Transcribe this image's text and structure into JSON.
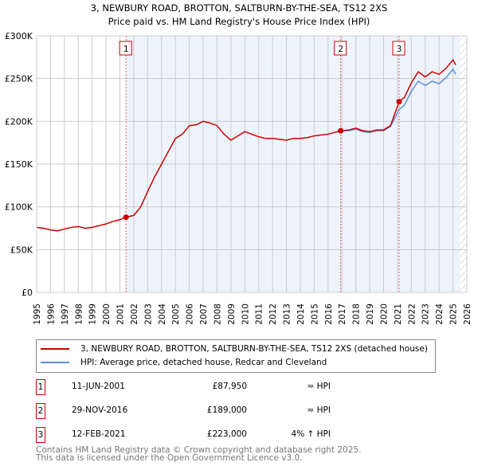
{
  "chart_data": {
    "type": "line",
    "title": "3, NEWBURY ROAD, BROTTON, SALTBURN-BY-THE-SEA, TS12 2XS",
    "subtitle": "Price paid vs. HM Land Registry's House Price Index (HPI)",
    "xlim": [
      1995,
      2026
    ],
    "ylim": [
      0,
      300000
    ],
    "x_ticks": [
      "1995",
      "1996",
      "1997",
      "1998",
      "1999",
      "2000",
      "2001",
      "2002",
      "2003",
      "2004",
      "2005",
      "2006",
      "2007",
      "2008",
      "2009",
      "2010",
      "2011",
      "2012",
      "2013",
      "2014",
      "2015",
      "2016",
      "2017",
      "2018",
      "2019",
      "2020",
      "2021",
      "2022",
      "2023",
      "2024",
      "2025",
      "2026"
    ],
    "y_ticks": [
      {
        "v": 0,
        "label": "£0"
      },
      {
        "v": 50000,
        "label": "£50K"
      },
      {
        "v": 100000,
        "label": "£100K"
      },
      {
        "v": 150000,
        "label": "£150K"
      },
      {
        "v": 200000,
        "label": "£200K"
      },
      {
        "v": 250000,
        "label": "£250K"
      },
      {
        "v": 300000,
        "label": "£300K"
      }
    ],
    "grid": true,
    "shaded_from": 2001.44,
    "hatched_from": 2025.5,
    "series": [
      {
        "name": "3, NEWBURY ROAD, BROTTON, SALTBURN-BY-THE-SEA, TS12 2XS (detached house)",
        "color": "#cc0000",
        "x": [
          1995,
          1995.5,
          1996,
          1996.5,
          1997,
          1997.5,
          1998,
          1998.5,
          1999,
          1999.5,
          2000,
          2000.5,
          2001,
          2001.44,
          2002,
          2002.5,
          2003,
          2003.5,
          2004,
          2004.5,
          2005,
          2005.5,
          2006,
          2006.5,
          2007,
          2007.5,
          2008,
          2008.5,
          2009,
          2009.5,
          2010,
          2010.5,
          2011,
          2011.5,
          2012,
          2012.5,
          2013,
          2013.5,
          2014,
          2014.5,
          2015,
          2015.5,
          2016,
          2016.91,
          2017.5,
          2018,
          2018.5,
          2019,
          2019.5,
          2020,
          2020.5,
          2021.12,
          2021.5,
          2022,
          2022.5,
          2023,
          2023.5,
          2024,
          2024.5,
          2025,
          2025.2
        ],
        "y": [
          76000,
          75000,
          73000,
          72000,
          74000,
          76000,
          77000,
          75000,
          76000,
          78000,
          80000,
          83000,
          85000,
          87950,
          90000,
          100000,
          118000,
          135000,
          150000,
          165000,
          180000,
          185000,
          195000,
          196000,
          200000,
          198000,
          195000,
          185000,
          178000,
          183000,
          188000,
          185000,
          182000,
          180000,
          180000,
          179000,
          178000,
          180000,
          180000,
          181000,
          183000,
          184000,
          185000,
          189000,
          190000,
          192000,
          189000,
          188000,
          190000,
          190000,
          195000,
          223000,
          228000,
          245000,
          258000,
          252000,
          258000,
          255000,
          262000,
          272000,
          266000
        ]
      },
      {
        "name": "HPI: Average price, detached house, Redcar and Cleveland",
        "color": "#5b8fd6",
        "x": [
          2016.91,
          2017.5,
          2018,
          2018.5,
          2019,
          2019.5,
          2020,
          2020.5,
          2021.12,
          2021.5,
          2022,
          2022.5,
          2023,
          2023.5,
          2024,
          2024.5,
          2025,
          2025.2
        ],
        "y": [
          189000,
          189000,
          191000,
          188000,
          187000,
          189000,
          189000,
          194000,
          214000,
          219000,
          235000,
          247000,
          242000,
          247000,
          244000,
          251000,
          261000,
          255000
        ]
      }
    ],
    "sales": [
      {
        "n": "1",
        "x": 2001.44,
        "y": 87950
      },
      {
        "n": "2",
        "x": 2016.91,
        "y": 189000
      },
      {
        "n": "3",
        "x": 2021.12,
        "y": 223000
      }
    ]
  },
  "legend": [
    "3, NEWBURY ROAD, BROTTON, SALTBURN-BY-THE-SEA, TS12 2XS (detached house)",
    "HPI: Average price, detached house, Redcar and Cleveland"
  ],
  "transactions": [
    {
      "n": "1",
      "date": "11-JUN-2001",
      "price": "£87,950",
      "hpi": "≈ HPI"
    },
    {
      "n": "2",
      "date": "29-NOV-2016",
      "price": "£189,000",
      "hpi": "≈ HPI"
    },
    {
      "n": "3",
      "date": "12-FEB-2021",
      "price": "£223,000",
      "hpi": "4% ↑ HPI"
    }
  ],
  "footer": [
    "Contains HM Land Registry data © Crown copyright and database right 2025.",
    "This data is licensed under the Open Government Licence v3.0."
  ]
}
